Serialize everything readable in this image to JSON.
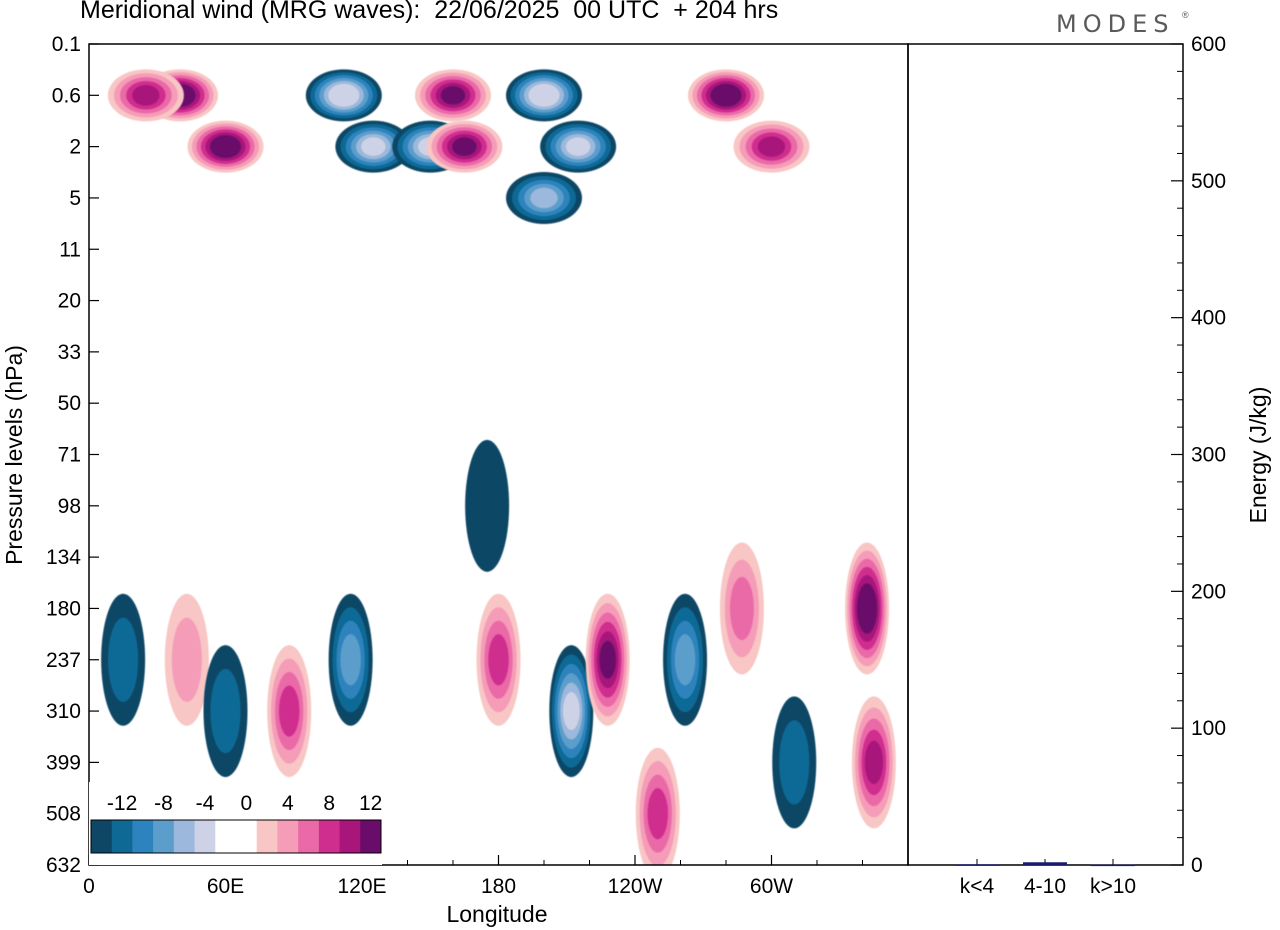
{
  "title": "Meridional wind (MRG waves):  22/06/2025  00 UTC  + 204 hrs",
  "logo": "MODES",
  "colors": {
    "neg_levels": [
      "#0e4766",
      "#0f6995",
      "#2d83bd",
      "#5c9ecb",
      "#9cb8dc",
      "#cdd2e6"
    ],
    "pos_levels": [
      "#f8c6c4",
      "#f59cb8",
      "#ea6aa7",
      "#d02e8f",
      "#a8157b",
      "#6a0d6a"
    ]
  },
  "chart_data": [
    {
      "type": "heatmap",
      "title": "Meridional wind (MRG waves):  22/06/2025  00 UTC  + 204 hrs",
      "xlabel": "Longitude",
      "ylabel": "Pressure levels (hPa)",
      "x_ticks": [
        "0",
        "60E",
        "120E",
        "180",
        "120W",
        "60W"
      ],
      "x_tick_values": [
        0,
        60,
        120,
        180,
        240,
        300
      ],
      "xlim": [
        0,
        360
      ],
      "y_ticks": [
        "0.1",
        "0.6",
        "2",
        "5",
        "11",
        "20",
        "33",
        "50",
        "71",
        "98",
        "134",
        "180",
        "237",
        "310",
        "399",
        "508",
        "632"
      ],
      "colorbar": {
        "labels": [
          "-12",
          "-8",
          "-4",
          "0",
          "4",
          "8",
          "12"
        ],
        "levels": [
          -14,
          -12,
          -10,
          -8,
          -6,
          -4,
          -2,
          2,
          4,
          6,
          8,
          10,
          12,
          14
        ]
      },
      "features": [
        {
          "lon": 40,
          "level": "0.6",
          "value": 14
        },
        {
          "lon": 60,
          "level": "2",
          "value": 14
        },
        {
          "lon": 25,
          "level": "0.6",
          "value": 10
        },
        {
          "lon": 112,
          "level": "0.6",
          "value": -14
        },
        {
          "lon": 125,
          "level": "2",
          "value": -12
        },
        {
          "lon": 150,
          "level": "2",
          "value": -12
        },
        {
          "lon": 160,
          "level": "0.6",
          "value": 12
        },
        {
          "lon": 165,
          "level": "2",
          "value": 12
        },
        {
          "lon": 200,
          "level": "0.6",
          "value": -14
        },
        {
          "lon": 215,
          "level": "2",
          "value": -12
        },
        {
          "lon": 200,
          "level": "5",
          "value": -10
        },
        {
          "lon": 280,
          "level": "0.6",
          "value": 14
        },
        {
          "lon": 300,
          "level": "2",
          "value": 10
        },
        {
          "lon": 15,
          "level": "237",
          "value": -4
        },
        {
          "lon": 43,
          "level": "237",
          "value": 4
        },
        {
          "lon": 60,
          "level": "310",
          "value": -4
        },
        {
          "lon": 88,
          "level": "310",
          "value": 8
        },
        {
          "lon": 115,
          "level": "237",
          "value": -8
        },
        {
          "lon": 180,
          "level": "237",
          "value": 8
        },
        {
          "lon": 212,
          "level": "310",
          "value": -12
        },
        {
          "lon": 228,
          "level": "237",
          "value": 12
        },
        {
          "lon": 262,
          "level": "237",
          "value": -8
        },
        {
          "lon": 250,
          "level": "508",
          "value": 8
        },
        {
          "lon": 287,
          "level": "180",
          "value": 6
        },
        {
          "lon": 310,
          "level": "399",
          "value": -4
        },
        {
          "lon": 342,
          "level": "180",
          "value": 14
        },
        {
          "lon": 345,
          "level": "399",
          "value": 10
        },
        {
          "lon": 175,
          "level": "98",
          "value": -2
        }
      ]
    },
    {
      "type": "bar",
      "ylabel": "Energy (J/kg)",
      "categories": [
        "k<4",
        "4-10",
        "k>10"
      ],
      "values": [
        0.5,
        2,
        0.3
      ],
      "ylim": [
        0,
        600
      ],
      "y_ticks": [
        "0",
        "100",
        "200",
        "300",
        "400",
        "500",
        "600"
      ],
      "bar_color": "#1a1a6e"
    }
  ]
}
